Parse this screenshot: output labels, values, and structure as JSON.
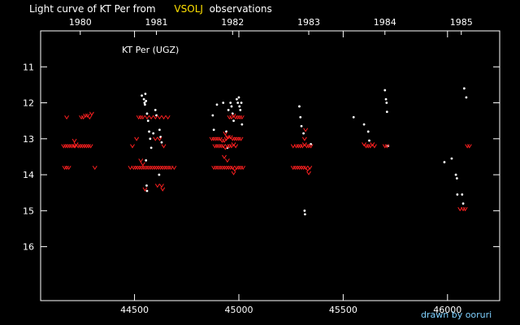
{
  "title": {
    "prefix": "Light curve of KT Per from",
    "database": "VSOLJ",
    "suffix": "observations"
  },
  "credit": "drawn by ooruri",
  "colors": {
    "background": "#000000",
    "axis": "#ffffff",
    "visual_obs": "#ffffff",
    "fainter_than": "#ff2020",
    "database_label": "#ffe000",
    "credit": "#7fd0ff"
  },
  "chart_data": {
    "type": "scatter",
    "label": "KT Per (UGZ)",
    "xlim": [
      44050,
      46250
    ],
    "ylim": [
      17.5,
      10.0
    ],
    "x_ticks": [
      {
        "value": 44500,
        "label": "44500"
      },
      {
        "value": 45000,
        "label": "45000"
      },
      {
        "value": 45500,
        "label": "45500"
      },
      {
        "value": 46000,
        "label": "46000"
      }
    ],
    "y_ticks": [
      {
        "value": 11,
        "label": "11"
      },
      {
        "value": 12,
        "label": "12"
      },
      {
        "value": 13,
        "label": "13"
      },
      {
        "value": 14,
        "label": "14"
      },
      {
        "value": 15,
        "label": "15"
      },
      {
        "value": 16,
        "label": "16"
      }
    ],
    "year_ticks": [
      {
        "value": 44240,
        "label": "1980"
      },
      {
        "value": 44605,
        "label": "1981"
      },
      {
        "value": 44970,
        "label": "1982"
      },
      {
        "value": 45335,
        "label": "1983"
      },
      {
        "value": 45700,
        "label": "1984"
      },
      {
        "value": 46066,
        "label": "1985"
      }
    ],
    "series": [
      {
        "kind": "observed",
        "marker": "dot",
        "points": [
          [
            44535,
            11.8
          ],
          [
            44545,
            11.9
          ],
          [
            44548,
            12.0
          ],
          [
            44550,
            12.05
          ],
          [
            44552,
            11.75
          ],
          [
            44555,
            11.95
          ],
          [
            44560,
            12.3
          ],
          [
            44565,
            12.5
          ],
          [
            44570,
            12.8
          ],
          [
            44580,
            13.25
          ],
          [
            44590,
            12.85
          ],
          [
            44555,
            13.6
          ],
          [
            44558,
            14.3
          ],
          [
            44560,
            14.45
          ],
          [
            44575,
            13.0
          ],
          [
            44600,
            12.2
          ],
          [
            44605,
            12.35
          ],
          [
            44620,
            12.75
          ],
          [
            44625,
            12.95
          ],
          [
            44630,
            13.1
          ],
          [
            44618,
            14.0
          ],
          [
            44875,
            12.35
          ],
          [
            44880,
            12.75
          ],
          [
            44895,
            12.05
          ],
          [
            44925,
            12.0
          ],
          [
            44940,
            12.8
          ],
          [
            44945,
            13.25
          ],
          [
            44950,
            12.2
          ],
          [
            44960,
            12.0
          ],
          [
            44965,
            12.1
          ],
          [
            44970,
            12.3
          ],
          [
            44975,
            12.5
          ],
          [
            44990,
            11.9
          ],
          [
            44995,
            12.0
          ],
          [
            45000,
            11.85
          ],
          [
            45003,
            12.1
          ],
          [
            45007,
            12.2
          ],
          [
            45012,
            12.0
          ],
          [
            45015,
            12.6
          ],
          [
            45290,
            12.1
          ],
          [
            45295,
            12.4
          ],
          [
            45300,
            12.65
          ],
          [
            45310,
            12.85
          ],
          [
            45315,
            15.0
          ],
          [
            45317,
            15.1
          ],
          [
            45345,
            13.15
          ],
          [
            45550,
            12.4
          ],
          [
            45600,
            12.6
          ],
          [
            45620,
            12.8
          ],
          [
            45625,
            13.05
          ],
          [
            45700,
            11.65
          ],
          [
            45705,
            11.9
          ],
          [
            45708,
            12.0
          ],
          [
            45710,
            12.25
          ],
          [
            45715,
            13.2
          ],
          [
            45985,
            13.65
          ],
          [
            46020,
            13.55
          ],
          [
            46040,
            14.0
          ],
          [
            46045,
            14.1
          ],
          [
            46047,
            14.55
          ],
          [
            46070,
            14.55
          ],
          [
            46075,
            14.8
          ],
          [
            46080,
            11.6
          ],
          [
            46090,
            11.85
          ]
        ]
      },
      {
        "kind": "fainter_than",
        "marker": "v",
        "points": [
          [
            44175,
            12.4
          ],
          [
            44160,
            13.2
          ],
          [
            44170,
            13.2
          ],
          [
            44180,
            13.2
          ],
          [
            44190,
            13.2
          ],
          [
            44200,
            13.2
          ],
          [
            44210,
            13.2
          ],
          [
            44220,
            13.15
          ],
          [
            44230,
            13.2
          ],
          [
            44240,
            13.2
          ],
          [
            44250,
            13.2
          ],
          [
            44260,
            13.2
          ],
          [
            44270,
            13.2
          ],
          [
            44280,
            13.2
          ],
          [
            44290,
            13.2
          ],
          [
            44165,
            13.8
          ],
          [
            44175,
            13.8
          ],
          [
            44185,
            13.8
          ],
          [
            44215,
            13.2
          ],
          [
            44212,
            13.05
          ],
          [
            44245,
            12.4
          ],
          [
            44255,
            12.4
          ],
          [
            44265,
            12.35
          ],
          [
            44275,
            12.35
          ],
          [
            44285,
            12.4
          ],
          [
            44295,
            12.3
          ],
          [
            44310,
            13.8
          ],
          [
            44520,
            12.4
          ],
          [
            44530,
            12.4
          ],
          [
            44540,
            12.4
          ],
          [
            44560,
            12.4
          ],
          [
            44580,
            12.4
          ],
          [
            44600,
            12.4
          ],
          [
            44620,
            12.4
          ],
          [
            44640,
            12.4
          ],
          [
            44660,
            12.4
          ],
          [
            44490,
            13.2
          ],
          [
            44510,
            13.0
          ],
          [
            44600,
            13.0
          ],
          [
            44620,
            13.0
          ],
          [
            44640,
            13.2
          ],
          [
            44480,
            13.8
          ],
          [
            44495,
            13.8
          ],
          [
            44505,
            13.8
          ],
          [
            44515,
            13.8
          ],
          [
            44525,
            13.8
          ],
          [
            44535,
            13.8
          ],
          [
            44545,
            13.8
          ],
          [
            44555,
            13.8
          ],
          [
            44565,
            13.8
          ],
          [
            44575,
            13.8
          ],
          [
            44585,
            13.8
          ],
          [
            44595,
            13.8
          ],
          [
            44605,
            13.8
          ],
          [
            44615,
            13.8
          ],
          [
            44625,
            13.8
          ],
          [
            44635,
            13.8
          ],
          [
            44645,
            13.8
          ],
          [
            44655,
            13.8
          ],
          [
            44665,
            13.8
          ],
          [
            44675,
            13.8
          ],
          [
            44690,
            13.8
          ],
          [
            44530,
            13.6
          ],
          [
            44540,
            13.7
          ],
          [
            44610,
            14.3
          ],
          [
            44630,
            14.3
          ],
          [
            44635,
            14.4
          ],
          [
            44550,
            14.4
          ],
          [
            44870,
            13.0
          ],
          [
            44880,
            13.0
          ],
          [
            44890,
            13.0
          ],
          [
            44900,
            13.0
          ],
          [
            44910,
            13.0
          ],
          [
            44920,
            13.05
          ],
          [
            44930,
            13.05
          ],
          [
            44940,
            13.0
          ],
          [
            44950,
            12.95
          ],
          [
            44960,
            12.95
          ],
          [
            44970,
            13.0
          ],
          [
            44980,
            13.0
          ],
          [
            44990,
            13.0
          ],
          [
            45000,
            13.0
          ],
          [
            45010,
            13.0
          ],
          [
            44885,
            13.2
          ],
          [
            44895,
            13.2
          ],
          [
            44905,
            13.2
          ],
          [
            44915,
            13.2
          ],
          [
            44925,
            13.2
          ],
          [
            44935,
            13.25
          ],
          [
            44945,
            13.2
          ],
          [
            44955,
            13.2
          ],
          [
            44965,
            13.2
          ],
          [
            44975,
            13.15
          ],
          [
            44985,
            13.2
          ],
          [
            44880,
            13.8
          ],
          [
            44890,
            13.8
          ],
          [
            44900,
            13.8
          ],
          [
            44910,
            13.8
          ],
          [
            44920,
            13.8
          ],
          [
            44930,
            13.8
          ],
          [
            44940,
            13.8
          ],
          [
            44950,
            13.8
          ],
          [
            44960,
            13.8
          ],
          [
            44970,
            13.8
          ],
          [
            44980,
            13.85
          ],
          [
            44990,
            13.8
          ],
          [
            45000,
            13.8
          ],
          [
            45010,
            13.8
          ],
          [
            45020,
            13.8
          ],
          [
            44930,
            13.5
          ],
          [
            44945,
            13.6
          ],
          [
            44975,
            13.95
          ],
          [
            44955,
            12.4
          ],
          [
            44965,
            12.4
          ],
          [
            44975,
            12.35
          ],
          [
            44985,
            12.4
          ],
          [
            44995,
            12.4
          ],
          [
            45005,
            12.4
          ],
          [
            45015,
            12.4
          ],
          [
            44935,
            12.85
          ],
          [
            44945,
            12.95
          ],
          [
            45260,
            13.2
          ],
          [
            45275,
            13.2
          ],
          [
            45285,
            13.2
          ],
          [
            45295,
            13.2
          ],
          [
            45305,
            13.2
          ],
          [
            45315,
            13.15
          ],
          [
            45325,
            13.2
          ],
          [
            45335,
            13.2
          ],
          [
            45345,
            13.2
          ],
          [
            45260,
            13.8
          ],
          [
            45270,
            13.8
          ],
          [
            45280,
            13.8
          ],
          [
            45290,
            13.8
          ],
          [
            45300,
            13.8
          ],
          [
            45310,
            13.8
          ],
          [
            45320,
            13.8
          ],
          [
            45330,
            13.85
          ],
          [
            45340,
            13.8
          ],
          [
            45335,
            13.95
          ],
          [
            45320,
            12.75
          ],
          [
            45315,
            13.0
          ],
          [
            45600,
            13.15
          ],
          [
            45610,
            13.2
          ],
          [
            45620,
            13.2
          ],
          [
            45630,
            13.2
          ],
          [
            45640,
            13.15
          ],
          [
            45650,
            13.2
          ],
          [
            45700,
            13.2
          ],
          [
            45710,
            13.2
          ],
          [
            46060,
            14.95
          ],
          [
            46075,
            14.95
          ],
          [
            46085,
            14.95
          ],
          [
            46095,
            13.2
          ],
          [
            46105,
            13.2
          ]
        ]
      }
    ]
  }
}
